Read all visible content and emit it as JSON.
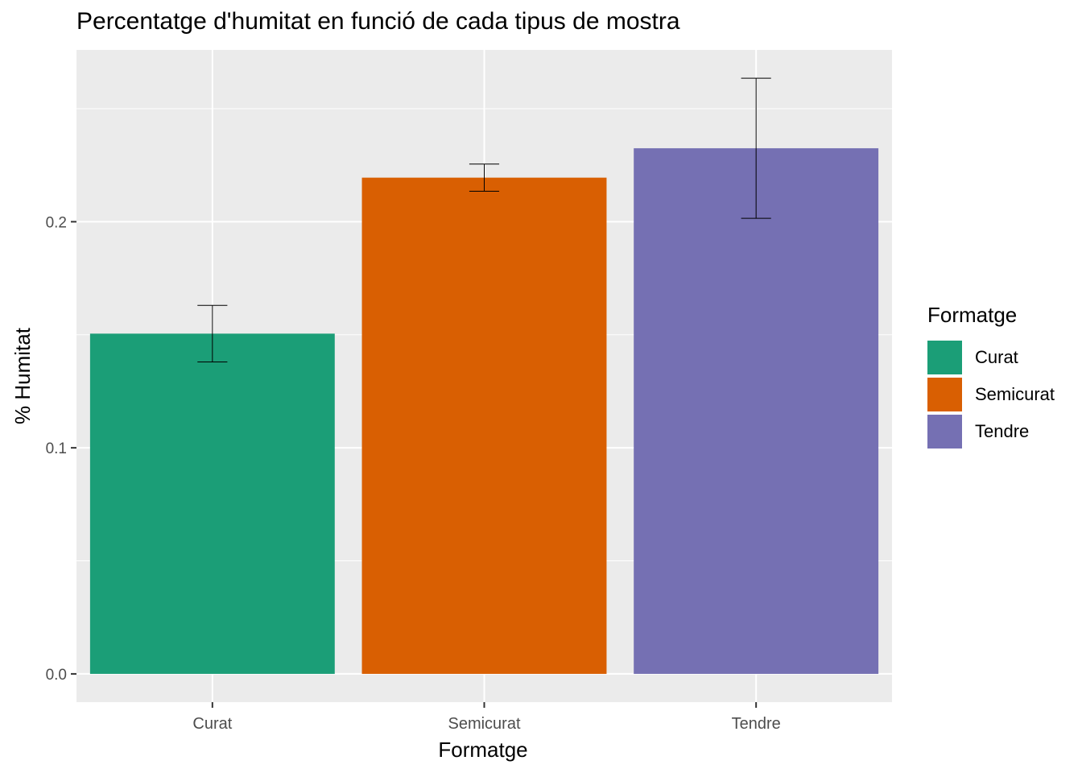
{
  "chart_data": {
    "type": "bar",
    "title": "Percentatge d'humitat en funció de cada tipus de mostra",
    "xlabel": "Formatge",
    "ylabel": "% Humitat",
    "categories": [
      "Curat",
      "Semicurat",
      "Tendre"
    ],
    "values": [
      0.1505,
      0.2195,
      0.2325
    ],
    "error_low": [
      0.138,
      0.2135,
      0.2015
    ],
    "error_high": [
      0.163,
      0.2255,
      0.2635
    ],
    "colors": [
      "#1b9e77",
      "#d95f02",
      "#7570b3"
    ],
    "ylim": [
      -0.0125,
      0.276
    ],
    "yticks": [
      0.0,
      0.1,
      0.2
    ],
    "ytick_labels": [
      "0.0",
      "0.1",
      "0.2"
    ],
    "grid": true,
    "legend": {
      "title": "Formatge",
      "position": "right",
      "items": [
        "Curat",
        "Semicurat",
        "Tendre"
      ]
    }
  }
}
